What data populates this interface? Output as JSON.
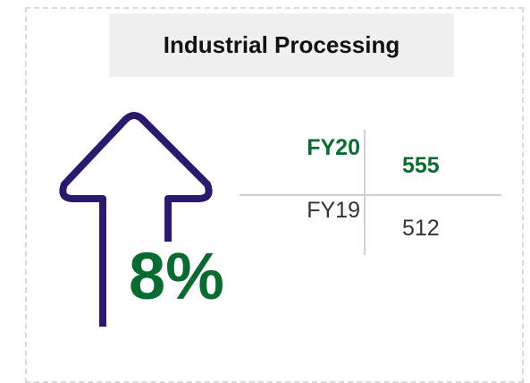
{
  "header": {
    "title": "Industrial Processing"
  },
  "change": "8%",
  "table": {
    "rows": [
      [
        "FY20",
        "555"
      ],
      [
        "FY19",
        "512"
      ]
    ]
  }
}
